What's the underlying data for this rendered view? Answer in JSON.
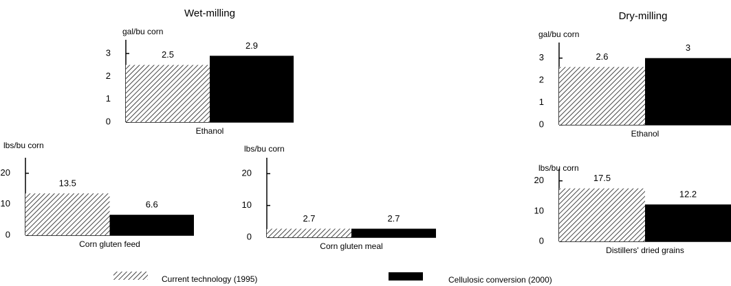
{
  "sections": [
    {
      "title": "Wet-milling"
    },
    {
      "title": "Dry-milling"
    }
  ],
  "chart_data": [
    {
      "type": "bar",
      "ylabel": "gal/bu corn",
      "categories": [
        "Ethanol"
      ],
      "series": [
        {
          "name": "Current technology (1995)",
          "color": "#444444",
          "hatch": true,
          "values": [
            2.5
          ]
        },
        {
          "name": "Cellulosic conversion (2000)",
          "color": "#000000",
          "values": [
            2.9
          ]
        }
      ],
      "ylim": [
        0,
        3.6
      ],
      "yticks": [
        0,
        1,
        2,
        3
      ]
    },
    {
      "type": "bar",
      "ylabel": "lbs/bu corn",
      "categories": [
        "Corn gluten feed"
      ],
      "series": [
        {
          "name": "Current technology (1995)",
          "color": "#444444",
          "hatch": true,
          "values": [
            13.5
          ]
        },
        {
          "name": "Cellulosic conversion (2000)",
          "color": "#000000",
          "values": [
            6.6
          ]
        }
      ],
      "ylim": [
        0,
        25
      ],
      "yticks": [
        0,
        10,
        20
      ]
    },
    {
      "type": "bar",
      "ylabel": "lbs/bu corn",
      "categories": [
        "Corn gluten meal"
      ],
      "series": [
        {
          "name": "Current technology (1995)",
          "color": "#444444",
          "hatch": true,
          "values": [
            2.7
          ]
        },
        {
          "name": "Cellulosic conversion (2000)",
          "color": "#000000",
          "values": [
            2.7
          ]
        }
      ],
      "ylim": [
        0,
        25
      ],
      "yticks": [
        0,
        10,
        20
      ]
    },
    {
      "type": "bar",
      "ylabel": "gal/bu corn",
      "categories": [
        "Ethanol"
      ],
      "series": [
        {
          "name": "Current technology (1995)",
          "color": "#444444",
          "hatch": true,
          "values": [
            2.6
          ]
        },
        {
          "name": "Cellulosic conversion (2000)",
          "color": "#000000",
          "values": [
            3
          ]
        }
      ],
      "ylim": [
        0,
        3.7
      ],
      "yticks": [
        0,
        1,
        2,
        3
      ]
    },
    {
      "type": "bar",
      "ylabel": "lbs/bu corn",
      "categories": [
        "Distillers' dried grains"
      ],
      "series": [
        {
          "name": "Current technology (1995)",
          "color": "#444444",
          "hatch": true,
          "values": [
            17.5
          ]
        },
        {
          "name": "Cellulosic conversion (2000)",
          "color": "#000000",
          "values": [
            12.2
          ]
        }
      ],
      "ylim": [
        0,
        24
      ],
      "yticks": [
        0,
        10,
        20
      ]
    }
  ]
}
